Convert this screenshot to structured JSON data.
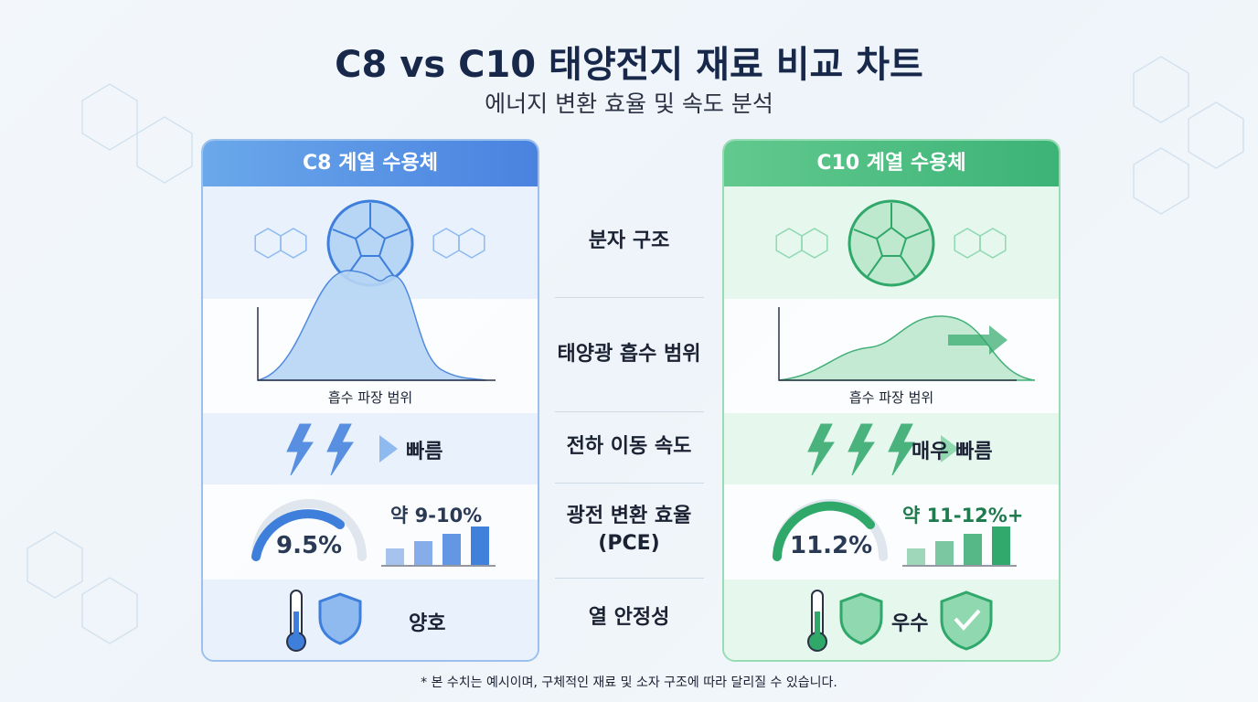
{
  "header": {
    "title": "C8 vs C10 태양전지 재료 비교 차트",
    "subtitle": "에너지 변환 효율 및 속도 분석"
  },
  "columns": [
    {
      "name": "C8 계열 수용체",
      "absorption_axis_label": "흡수 파장 범위",
      "charge_speed": "빠름",
      "pce": "9.5%",
      "pce_range": "약 9-10%",
      "stability": "양호"
    },
    {
      "name": "C10 계열 수용체",
      "absorption_axis_label": "흡수 파장 범위",
      "charge_speed": "매우 빠름",
      "pce": "11.2%",
      "pce_range": "약 11-12%+",
      "stability": "우수"
    }
  ],
  "rows": [
    [
      "분자 구조"
    ],
    [
      "태양광 흡수 범위"
    ],
    [
      "전하 이동 속도"
    ],
    [
      "광전 변환 효율",
      "(PCE)"
    ],
    [
      "열 안정성"
    ]
  ],
  "footnote": "* 본 수치는 예시이며, 구체적인 재료 및 소자 구조에 따라 달리질 수 있습니다."
}
